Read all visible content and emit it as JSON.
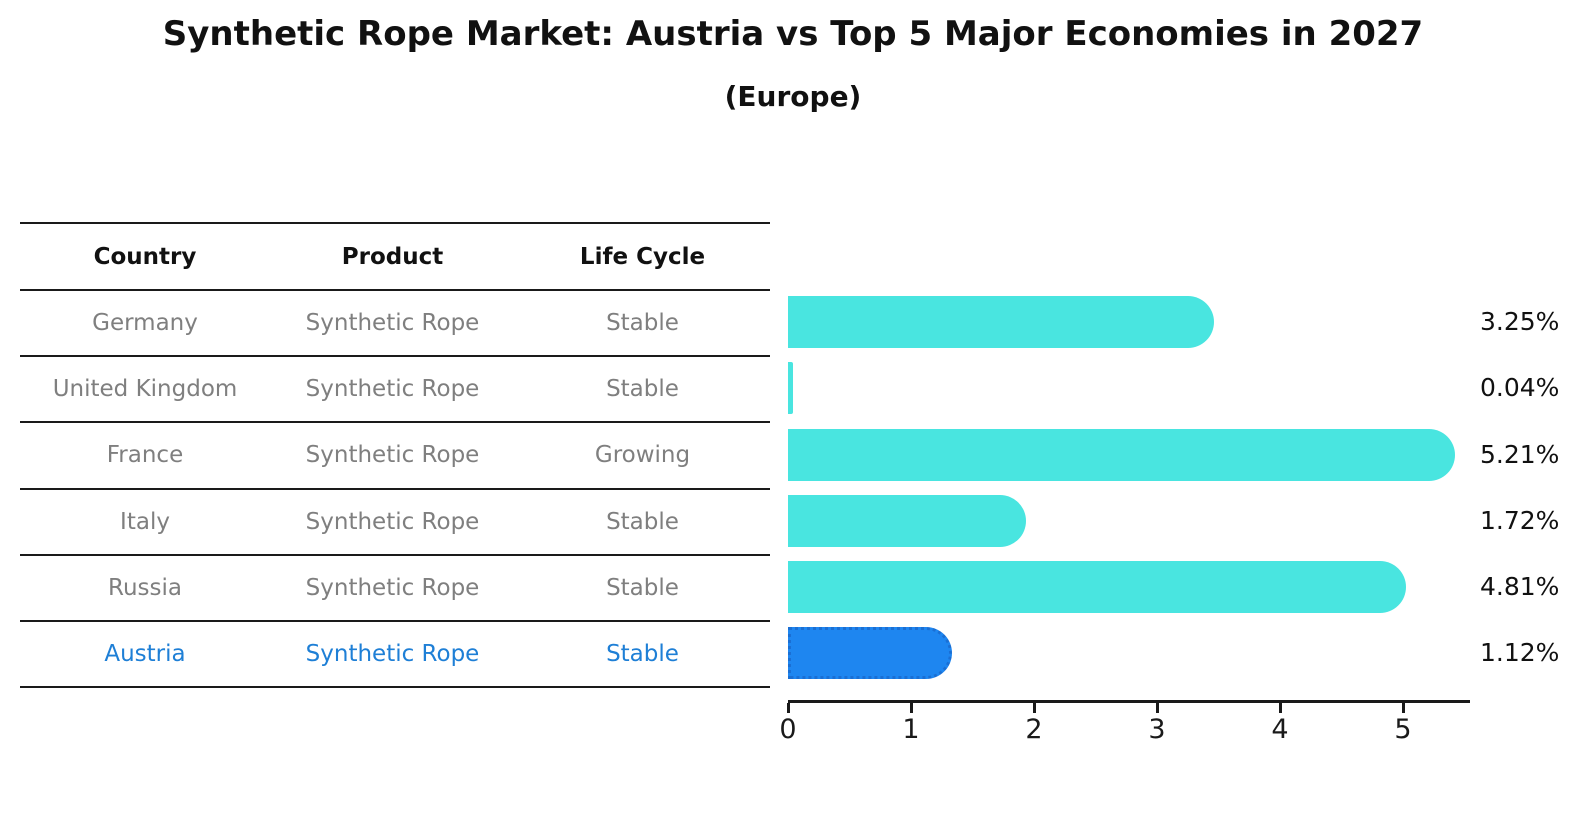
{
  "title": "Synthetic Rope Market: Austria vs Top 5 Major Economies in 2027",
  "subtitle": "(Europe)",
  "table": {
    "headers": [
      "Country",
      "Product",
      "Life Cycle"
    ],
    "rows": [
      {
        "country": "Germany",
        "product": "Synthetic Rope",
        "life_cycle": "Stable",
        "highlight": false
      },
      {
        "country": "United Kingdom",
        "product": "Synthetic Rope",
        "life_cycle": "Stable",
        "highlight": false
      },
      {
        "country": "France",
        "product": "Synthetic Rope",
        "life_cycle": "Growing",
        "highlight": false
      },
      {
        "country": "Italy",
        "product": "Synthetic Rope",
        "life_cycle": "Stable",
        "highlight": false
      },
      {
        "country": "Russia",
        "product": "Synthetic Rope",
        "life_cycle": "Stable",
        "highlight": false
      },
      {
        "country": "Austria",
        "product": "Synthetic Rope",
        "life_cycle": "Stable",
        "highlight": true
      }
    ]
  },
  "chart_data": {
    "type": "bar",
    "orientation": "horizontal",
    "title": "Synthetic Rope Market: Austria vs Top 5 Major Economies in 2027",
    "subtitle": "(Europe)",
    "categories": [
      "Germany",
      "United Kingdom",
      "France",
      "Italy",
      "Russia",
      "Austria"
    ],
    "values": [
      3.25,
      0.04,
      5.21,
      1.72,
      4.81,
      1.12
    ],
    "value_labels": [
      "3.25%",
      "0.04%",
      "5.21%",
      "1.72%",
      "4.81%",
      "1.12%"
    ],
    "xlabel": "",
    "ylabel": "",
    "xlim": [
      0,
      5.5
    ],
    "xticks": [
      "0",
      "1",
      "2",
      "3",
      "4",
      "5"
    ],
    "grid": false,
    "legend": false,
    "bar_color": "#49e5e0",
    "highlight_color": "#1e86f0",
    "highlight_border_color": "#1a6fd4",
    "highlight_index": 5
  },
  "colors": {
    "text": "#111111",
    "muted_text": "#7f7f7f",
    "highlight_text": "#1e7fd6",
    "line": "#1a1a1a",
    "background": "#ffffff"
  }
}
